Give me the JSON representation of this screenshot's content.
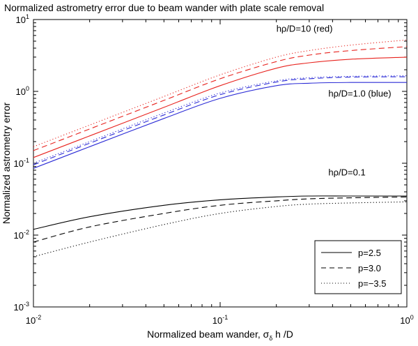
{
  "chart_data": {
    "type": "line",
    "title": "Normalized astrometry error due to beam wander with plate scale removal",
    "xlabel": {
      "prefix": "Normalized beam wander, ",
      "symbol": "σ",
      "subscript": "δ",
      "suffix": " h /D"
    },
    "ylabel": "Normalized astrometry error",
    "xscale": "log",
    "yscale": "log",
    "xlim": [
      0.01,
      1
    ],
    "ylim": [
      0.001,
      10
    ],
    "xticks": [
      {
        "value": 0.01,
        "base": "10",
        "exp": "-2"
      },
      {
        "value": 0.1,
        "base": "10",
        "exp": "-1"
      },
      {
        "value": 1,
        "base": "10",
        "exp": "0"
      }
    ],
    "yticks": [
      {
        "value": 0.001,
        "base": "10",
        "exp": "-3"
      },
      {
        "value": 0.01,
        "base": "10",
        "exp": "-2"
      },
      {
        "value": 0.1,
        "base": "10",
        "exp": "-1"
      },
      {
        "value": 1,
        "base": "10",
        "exp": "0"
      },
      {
        "value": 10,
        "base": "10",
        "exp": "1"
      }
    ],
    "annotations": [
      {
        "text": "hρ/D=10 (red)",
        "x": 0.2,
        "y": 6.8
      },
      {
        "text": "hρ/D=1.0 (blue)",
        "x": 0.38,
        "y": 0.85
      },
      {
        "text": "hρ/D=0.1",
        "x": 0.38,
        "y": 0.068
      }
    ],
    "legend": {
      "position": "bottom-right",
      "entries": [
        {
          "label": "p=2.5",
          "style": "solid"
        },
        {
          "label": "p=3.0",
          "style": "dashed"
        },
        {
          "label": "p=−3.5",
          "style": "dotted"
        }
      ]
    },
    "x": [
      0.01,
      0.02,
      0.05,
      0.1,
      0.2,
      0.3,
      0.5,
      1.0
    ],
    "series": [
      {
        "name": "hρ/D=10, p=2.5",
        "color": "#e8231e",
        "style": "solid",
        "values": [
          0.12,
          0.24,
          0.6,
          1.2,
          2.1,
          2.5,
          2.8,
          3.0
        ]
      },
      {
        "name": "hρ/D=10, p=3.0",
        "color": "#e8231e",
        "style": "dashed",
        "values": [
          0.15,
          0.3,
          0.75,
          1.5,
          2.6,
          3.2,
          3.7,
          4.2
        ]
      },
      {
        "name": "hρ/D=10, p=-3.5",
        "color": "#e8231e",
        "style": "dotted",
        "values": [
          0.17,
          0.34,
          0.85,
          1.7,
          3.0,
          3.7,
          4.4,
          5.2
        ]
      },
      {
        "name": "hρ/D=1.0, p=2.5",
        "color": "#2b2bd6",
        "style": "solid",
        "values": [
          0.085,
          0.17,
          0.42,
          0.8,
          1.2,
          1.3,
          1.33,
          1.33
        ]
      },
      {
        "name": "hρ/D=1.0, p=3.0",
        "color": "#2b2bd6",
        "style": "dashed",
        "values": [
          0.095,
          0.19,
          0.47,
          0.9,
          1.35,
          1.5,
          1.58,
          1.6
        ]
      },
      {
        "name": "hρ/D=1.0, p=-3.5",
        "color": "#2b2bd6",
        "style": "dotted",
        "values": [
          0.1,
          0.2,
          0.5,
          0.95,
          1.4,
          1.55,
          1.62,
          1.65
        ]
      },
      {
        "name": "hρ/D=0.1, p=2.5",
        "color": "#000000",
        "style": "solid",
        "values": [
          0.012,
          0.018,
          0.026,
          0.031,
          0.034,
          0.035,
          0.035,
          0.035
        ]
      },
      {
        "name": "hρ/D=0.1, p=3.0",
        "color": "#000000",
        "style": "dashed",
        "values": [
          0.008,
          0.013,
          0.02,
          0.026,
          0.03,
          0.032,
          0.033,
          0.034
        ]
      },
      {
        "name": "hρ/D=0.1, p=-3.5",
        "color": "#000000",
        "style": "dotted",
        "values": [
          0.005,
          0.008,
          0.014,
          0.02,
          0.025,
          0.027,
          0.028,
          0.029
        ]
      }
    ]
  }
}
